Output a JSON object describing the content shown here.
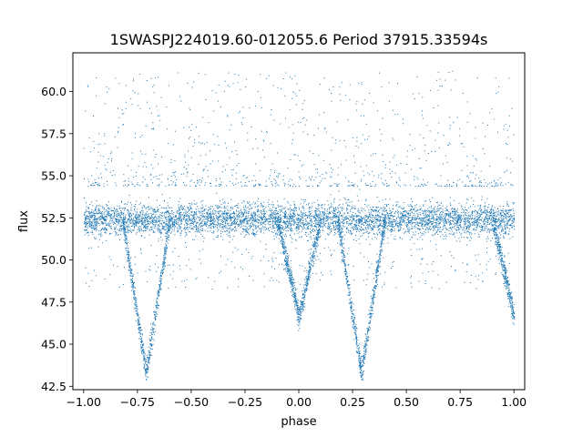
{
  "chart_data": {
    "type": "scatter",
    "title": "1SWASPJ224019.60-012055.6 Period 37915.33594s",
    "xlabel": "phase",
    "ylabel": "flux",
    "xlim": [
      -1.05,
      1.05
    ],
    "ylim": [
      42.3,
      62.3
    ],
    "x_ticks": [
      -1.0,
      -0.75,
      -0.5,
      -0.25,
      0.0,
      0.25,
      0.5,
      0.75,
      1.0
    ],
    "x_tick_labels": [
      "−1.00",
      "−0.75",
      "−0.50",
      "−0.25",
      "0.00",
      "0.25",
      "0.50",
      "0.75",
      "1.00"
    ],
    "y_ticks": [
      42.5,
      45.0,
      47.5,
      50.0,
      52.5,
      55.0,
      57.5,
      60.0
    ],
    "y_tick_labels": [
      "42.5",
      "45.0",
      "47.5",
      "50.0",
      "52.5",
      "55.0",
      "57.5",
      "60.0"
    ],
    "point_color": "#1f77b4",
    "grid": false,
    "legend": "none",
    "series": [
      {
        "baseline_flux": 52.4,
        "baseline_spread": 0.8,
        "dips": [
          {
            "phase_center": -0.71,
            "half_width": 0.11,
            "min_flux": 43.3
          },
          {
            "phase_center": 0.0,
            "half_width": 0.1,
            "min_flux": 46.6
          },
          {
            "phase_center": 0.29,
            "half_width": 0.11,
            "min_flux": 43.3
          },
          {
            "phase_center": 1.0,
            "half_width": 0.1,
            "min_flux": 46.6
          }
        ],
        "scatter_upper_flux": 61.3
      }
    ]
  }
}
